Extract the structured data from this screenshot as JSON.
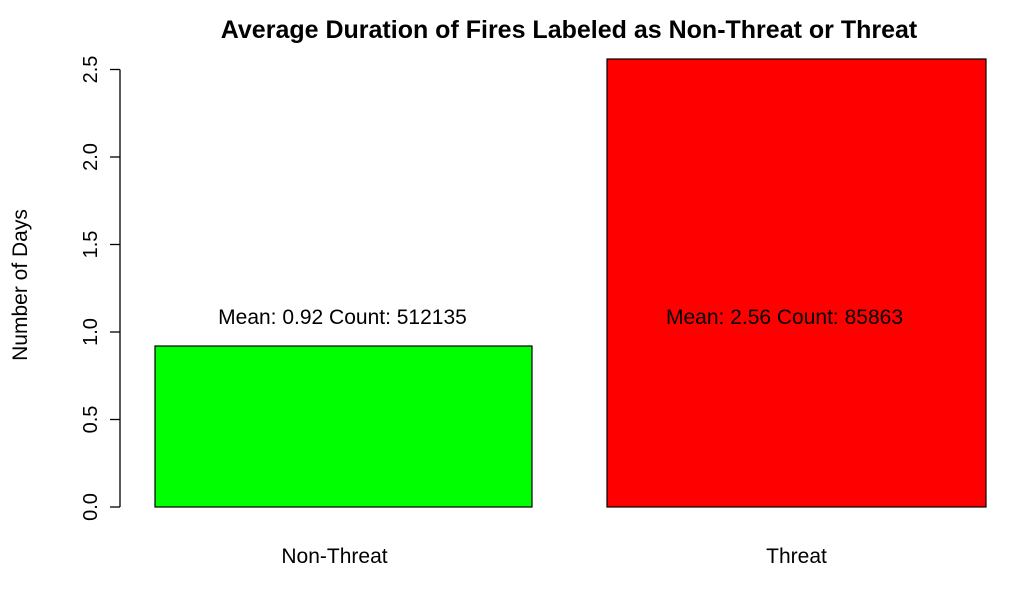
{
  "chart_data": {
    "type": "bar",
    "title": "Average Duration of Fires Labeled as Non-Threat or Threat",
    "xlabel": "",
    "ylabel": "Number of Days",
    "categories": [
      "Non-Threat",
      "Threat"
    ],
    "values": [
      0.92,
      2.56
    ],
    "colors": [
      "#00ff00",
      "#ff0000"
    ],
    "annotations": [
      "Mean: 0.92   Count: 512135",
      "Mean: 2.56   Count: 85863"
    ],
    "yticks": [
      "0.0",
      "0.5",
      "1.0",
      "1.5",
      "2.0",
      "2.5"
    ],
    "ylim": [
      0,
      2.5
    ],
    "grid": false,
    "legend": "none"
  }
}
